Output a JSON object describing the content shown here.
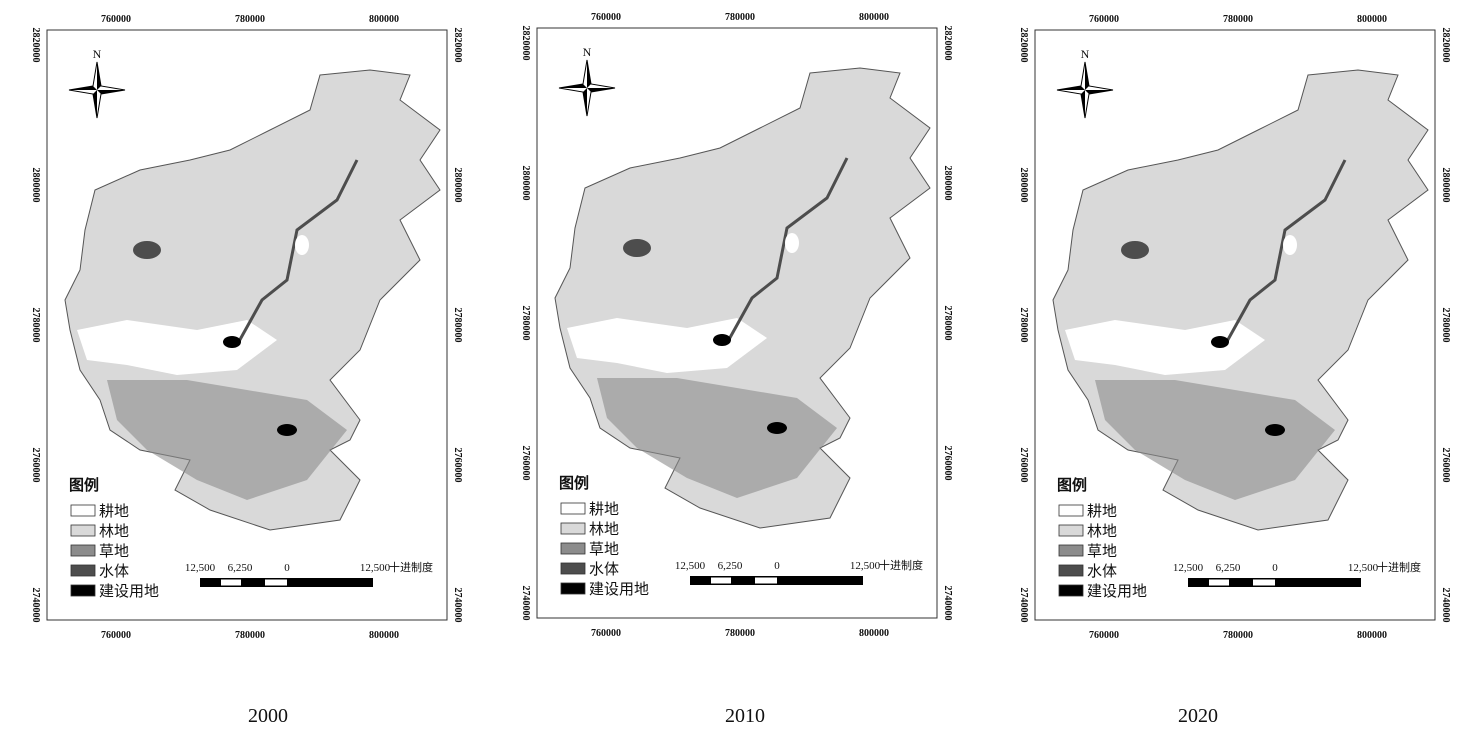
{
  "maps": {
    "x_labels": [
      "760000",
      "780000",
      "800000"
    ],
    "y_labels": [
      "2820000",
      "2800000",
      "2780000",
      "2760000",
      "2740000"
    ],
    "north": "N",
    "legend": {
      "title": "图例",
      "items": [
        "耕地",
        "林地",
        "草地",
        "水体",
        "建设用地"
      ]
    },
    "scale": {
      "labels": [
        "12,500",
        "6,250",
        "0",
        "12,500"
      ],
      "unit": "十进制度"
    }
  },
  "panels": [
    {
      "caption": "2000"
    },
    {
      "caption": "2010"
    },
    {
      "caption": "2020"
    }
  ]
}
